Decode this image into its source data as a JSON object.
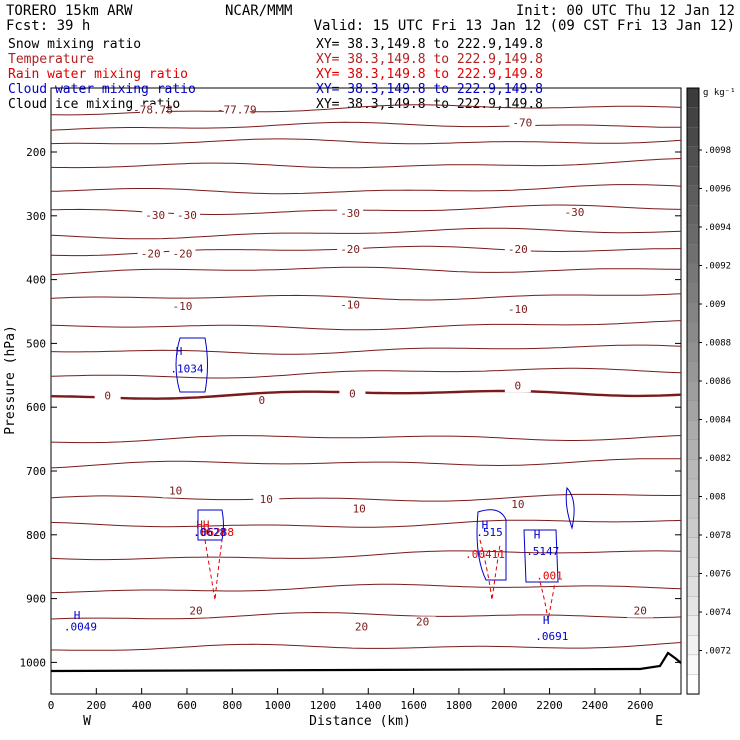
{
  "header": {
    "left_line1": "TORERO  15km ARW",
    "center_line1": "NCAR/MMM",
    "right_line1": "Init: 00 UTC Thu 12 Jan 12",
    "left_line2": "Fcst:   39 h",
    "right_line2": "Valid: 15 UTC Fri 13 Jan 12 (09 CST Fri 13 Jan 12)"
  },
  "legend": [
    {
      "name": "Snow mixing ratio",
      "xy": "XY=  38.3,149.8 to 222.9,149.8",
      "color": "#000000"
    },
    {
      "name": "Temperature",
      "xy": "XY=  38.3,149.8 to 222.9,149.8",
      "color": "#b22222"
    },
    {
      "name": "Rain water mixing ratio",
      "xy": "XY=  38.3,149.8 to 222.9,149.8",
      "color": "#e00000"
    },
    {
      "name": "Cloud water mixing ratio",
      "xy": "XY=  38.3,149.8 to 222.9,149.8",
      "color": "#0000cc"
    },
    {
      "name": "Cloud ice mixing ratio",
      "xy": "XY=  38.3,149.8 to 222.9,149.8",
      "color": "#000000"
    }
  ],
  "chart_data": {
    "type": "contour-cross-section",
    "xlabel": "Distance (km)",
    "ylabel": "Pressure (hPa)",
    "xlim": [
      0,
      2780
    ],
    "ylim": [
      1050,
      100
    ],
    "x_ticks": [
      0,
      200,
      400,
      600,
      800,
      1000,
      1200,
      1400,
      1600,
      1800,
      2000,
      2200,
      2400,
      2600
    ],
    "y_ticks": [
      200,
      300,
      400,
      500,
      600,
      700,
      800,
      900,
      1000
    ],
    "end_labels": {
      "left": "W",
      "right": "E"
    },
    "colorbar": {
      "unit": "g kg⁻¹",
      "ticks": [
        ".0098",
        ".0096",
        ".0094",
        ".0092",
        ".009",
        ".0088",
        ".0086",
        ".0084",
        ".0082",
        ".008",
        ".0078",
        ".0076",
        ".0074",
        ".0072"
      ]
    },
    "temperature_labels": [
      {
        "text": "-78.78",
        "x": 450,
        "p": 140
      },
      {
        "text": "-77.79",
        "x": 820,
        "p": 140
      },
      {
        "text": "-70",
        "x": 2080,
        "p": 160
      },
      {
        "text": "-30",
        "x": 460,
        "p": 305
      },
      {
        "text": "-30",
        "x": 600,
        "p": 305
      },
      {
        "text": "-30",
        "x": 1320,
        "p": 302
      },
      {
        "text": "-30",
        "x": 2310,
        "p": 300
      },
      {
        "text": "-20",
        "x": 440,
        "p": 365
      },
      {
        "text": "-20",
        "x": 580,
        "p": 365
      },
      {
        "text": "-20",
        "x": 1320,
        "p": 358
      },
      {
        "text": "-20",
        "x": 2060,
        "p": 358
      },
      {
        "text": "-10",
        "x": 580,
        "p": 448
      },
      {
        "text": "-10",
        "x": 1320,
        "p": 445
      },
      {
        "text": "-10",
        "x": 2060,
        "p": 452
      },
      {
        "text": "0",
        "x": 250,
        "p": 588
      },
      {
        "text": "0",
        "x": 930,
        "p": 595
      },
      {
        "text": "0",
        "x": 1330,
        "p": 585
      },
      {
        "text": "0",
        "x": 2060,
        "p": 572
      },
      {
        "text": "10",
        "x": 550,
        "p": 737
      },
      {
        "text": "10",
        "x": 950,
        "p": 750
      },
      {
        "text": "10",
        "x": 1360,
        "p": 765
      },
      {
        "text": "10",
        "x": 2060,
        "p": 758
      },
      {
        "text": "20",
        "x": 640,
        "p": 925
      },
      {
        "text": "20",
        "x": 1370,
        "p": 950
      },
      {
        "text": "20",
        "x": 1640,
        "p": 942
      },
      {
        "text": "20",
        "x": 2600,
        "p": 925
      }
    ],
    "mixing_ratio_labels": [
      {
        "text": "H",
        "x": 565,
        "p": 518,
        "color": "#0000cc"
      },
      {
        "text": ".1034",
        "x": 600,
        "p": 546,
        "color": "#0000cc"
      },
      {
        "text": "HH",
        "x": 670,
        "p": 790,
        "color": "#e00000"
      },
      {
        "text": ".06288",
        "x": 720,
        "p": 802,
        "color": "#e00000"
      },
      {
        "text": ".0628",
        "x": 700,
        "p": 802,
        "color": "#0000cc"
      },
      {
        "text": "H",
        "x": 1915,
        "p": 790,
        "color": "#0000cc"
      },
      {
        "text": ".515",
        "x": 1935,
        "p": 802,
        "color": "#0000cc"
      },
      {
        "text": ".00411",
        "x": 1915,
        "p": 836,
        "color": "#e00000"
      },
      {
        "text": "H",
        "x": 2145,
        "p": 806,
        "color": "#0000cc"
      },
      {
        "text": ".5147",
        "x": 2170,
        "p": 832,
        "color": "#0000cc"
      },
      {
        "text": ".001",
        "x": 2200,
        "p": 870,
        "color": "#e00000"
      },
      {
        "text": "H",
        "x": 115,
        "p": 932,
        "color": "#0000cc"
      },
      {
        "text": ".0049",
        "x": 130,
        "p": 950,
        "color": "#0000cc"
      },
      {
        "text": "H",
        "x": 2185,
        "p": 940,
        "color": "#0000cc"
      },
      {
        "text": ".0691",
        "x": 2210,
        "p": 965,
        "color": "#0000cc"
      }
    ]
  }
}
